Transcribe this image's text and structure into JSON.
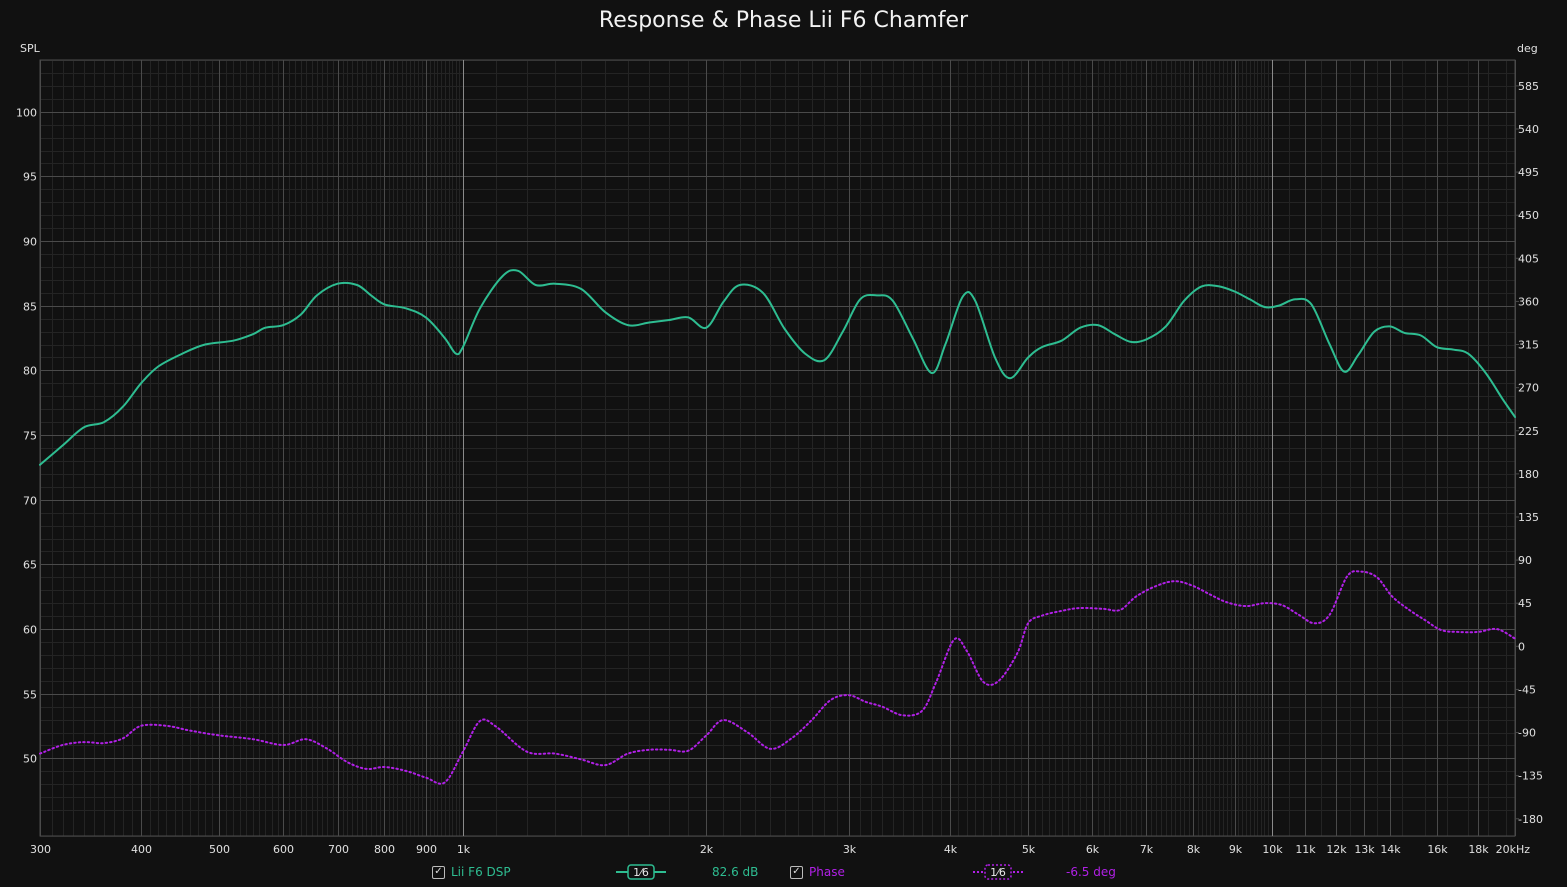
{
  "chart_data": {
    "type": "line",
    "title": "Response & Phase Lii F6 Chamfer",
    "y_left_label": "SPL",
    "y_right_label": "deg",
    "xlim": [
      300,
      20000
    ],
    "x_scale": "log",
    "ylim_left": [
      44,
      104
    ],
    "ylim_right": [
      -198,
      612
    ],
    "x_ticks": [
      {
        "v": 300,
        "t": "300"
      },
      {
        "v": 400,
        "t": "400"
      },
      {
        "v": 500,
        "t": "500"
      },
      {
        "v": 600,
        "t": "600"
      },
      {
        "v": 700,
        "t": "700"
      },
      {
        "v": 800,
        "t": "800"
      },
      {
        "v": 900,
        "t": "900"
      },
      {
        "v": 1000,
        "t": "1k"
      },
      {
        "v": 2000,
        "t": "2k"
      },
      {
        "v": 3000,
        "t": "3k"
      },
      {
        "v": 4000,
        "t": "4k"
      },
      {
        "v": 5000,
        "t": "5k"
      },
      {
        "v": 6000,
        "t": "6k"
      },
      {
        "v": 7000,
        "t": "7k"
      },
      {
        "v": 8000,
        "t": "8k"
      },
      {
        "v": 9000,
        "t": "9k"
      },
      {
        "v": 10000,
        "t": "10k"
      },
      {
        "v": 11000,
        "t": "11k"
      },
      {
        "v": 12000,
        "t": "12k"
      },
      {
        "v": 13000,
        "t": "13k"
      },
      {
        "v": 14000,
        "t": "14k"
      },
      {
        "v": 16000,
        "t": "16k"
      },
      {
        "v": 18000,
        "t": "18k"
      },
      {
        "v": 20000,
        "t": "20kHz"
      }
    ],
    "y_left_ticks": [
      50,
      55,
      60,
      65,
      70,
      75,
      80,
      85,
      90,
      95,
      100
    ],
    "y_right_ticks": [
      -180,
      -135,
      -90,
      -45,
      0,
      45,
      90,
      135,
      180,
      225,
      270,
      315,
      360,
      405,
      450,
      495,
      540,
      585
    ],
    "series": [
      {
        "name": "Lii F6 DSP",
        "axis": "left",
        "color": "#2ebd91",
        "points": [
          [
            300,
            72.7
          ],
          [
            320,
            74.2
          ],
          [
            340,
            75.6
          ],
          [
            360,
            76.0
          ],
          [
            380,
            77.2
          ],
          [
            400,
            79.0
          ],
          [
            420,
            80.3
          ],
          [
            450,
            81.3
          ],
          [
            480,
            82.0
          ],
          [
            520,
            82.3
          ],
          [
            550,
            82.8
          ],
          [
            570,
            83.3
          ],
          [
            600,
            83.5
          ],
          [
            630,
            84.3
          ],
          [
            660,
            85.8
          ],
          [
            700,
            86.7
          ],
          [
            740,
            86.6
          ],
          [
            770,
            85.8
          ],
          [
            800,
            85.1
          ],
          [
            850,
            84.8
          ],
          [
            900,
            84.1
          ],
          [
            950,
            82.5
          ],
          [
            980,
            81.3
          ],
          [
            1000,
            81.8
          ],
          [
            1050,
            84.8
          ],
          [
            1120,
            87.3
          ],
          [
            1170,
            87.7
          ],
          [
            1230,
            86.6
          ],
          [
            1300,
            86.7
          ],
          [
            1400,
            86.3
          ],
          [
            1500,
            84.5
          ],
          [
            1600,
            83.5
          ],
          [
            1700,
            83.7
          ],
          [
            1800,
            83.9
          ],
          [
            1900,
            84.1
          ],
          [
            2000,
            83.3
          ],
          [
            2100,
            85.3
          ],
          [
            2200,
            86.6
          ],
          [
            2350,
            86.0
          ],
          [
            2500,
            83.2
          ],
          [
            2650,
            81.3
          ],
          [
            2800,
            80.8
          ],
          [
            2950,
            83.0
          ],
          [
            3100,
            85.5
          ],
          [
            3250,
            85.8
          ],
          [
            3400,
            85.4
          ],
          [
            3600,
            82.5
          ],
          [
            3800,
            79.8
          ],
          [
            3950,
            82.0
          ],
          [
            4150,
            85.7
          ],
          [
            4300,
            85.4
          ],
          [
            4550,
            81.0
          ],
          [
            4750,
            79.4
          ],
          [
            5000,
            81.0
          ],
          [
            5200,
            81.8
          ],
          [
            5500,
            82.3
          ],
          [
            5800,
            83.3
          ],
          [
            6100,
            83.5
          ],
          [
            6400,
            82.8
          ],
          [
            6700,
            82.2
          ],
          [
            7000,
            82.4
          ],
          [
            7400,
            83.4
          ],
          [
            7800,
            85.4
          ],
          [
            8200,
            86.5
          ],
          [
            8600,
            86.5
          ],
          [
            9000,
            86.1
          ],
          [
            9400,
            85.5
          ],
          [
            9800,
            84.9
          ],
          [
            10200,
            85.0
          ],
          [
            10700,
            85.5
          ],
          [
            11200,
            85.1
          ],
          [
            11800,
            82.0
          ],
          [
            12300,
            79.9
          ],
          [
            12800,
            81.2
          ],
          [
            13400,
            83.0
          ],
          [
            14000,
            83.4
          ],
          [
            14600,
            82.9
          ],
          [
            15300,
            82.7
          ],
          [
            16000,
            81.8
          ],
          [
            16800,
            81.6
          ],
          [
            17500,
            81.3
          ],
          [
            18400,
            79.8
          ],
          [
            19300,
            77.8
          ],
          [
            20000,
            76.4
          ]
        ]
      },
      {
        "name": "Phase",
        "axis": "right",
        "color": "#b020e6",
        "points": [
          [
            300,
            -112
          ],
          [
            320,
            -103
          ],
          [
            340,
            -100
          ],
          [
            360,
            -101
          ],
          [
            380,
            -96
          ],
          [
            400,
            -83
          ],
          [
            430,
            -83
          ],
          [
            460,
            -88
          ],
          [
            500,
            -93
          ],
          [
            550,
            -97
          ],
          [
            600,
            -103
          ],
          [
            640,
            -97
          ],
          [
            680,
            -107
          ],
          [
            720,
            -121
          ],
          [
            760,
            -128
          ],
          [
            800,
            -126
          ],
          [
            850,
            -130
          ],
          [
            900,
            -137
          ],
          [
            950,
            -142
          ],
          [
            1000,
            -110
          ],
          [
            1050,
            -78
          ],
          [
            1100,
            -84
          ],
          [
            1200,
            -110
          ],
          [
            1300,
            -112
          ],
          [
            1400,
            -118
          ],
          [
            1500,
            -124
          ],
          [
            1600,
            -112
          ],
          [
            1700,
            -108
          ],
          [
            1800,
            -108
          ],
          [
            1900,
            -109
          ],
          [
            2000,
            -93
          ],
          [
            2100,
            -77
          ],
          [
            2250,
            -90
          ],
          [
            2400,
            -107
          ],
          [
            2550,
            -96
          ],
          [
            2700,
            -77
          ],
          [
            2850,
            -56
          ],
          [
            3000,
            -51
          ],
          [
            3150,
            -58
          ],
          [
            3300,
            -63
          ],
          [
            3500,
            -72
          ],
          [
            3700,
            -67
          ],
          [
            3850,
            -37
          ],
          [
            4050,
            7
          ],
          [
            4200,
            -5
          ],
          [
            4400,
            -37
          ],
          [
            4600,
            -36
          ],
          [
            4850,
            -7
          ],
          [
            5000,
            24
          ],
          [
            5200,
            32
          ],
          [
            5500,
            37
          ],
          [
            5800,
            40
          ],
          [
            6200,
            39
          ],
          [
            6500,
            38
          ],
          [
            6800,
            52
          ],
          [
            7200,
            63
          ],
          [
            7600,
            68
          ],
          [
            8000,
            63
          ],
          [
            8400,
            54
          ],
          [
            8800,
            46
          ],
          [
            9300,
            42
          ],
          [
            9800,
            45
          ],
          [
            10300,
            43
          ],
          [
            10800,
            33
          ],
          [
            11300,
            24
          ],
          [
            11800,
            33
          ],
          [
            12400,
            73
          ],
          [
            12900,
            78
          ],
          [
            13500,
            72
          ],
          [
            14100,
            52
          ],
          [
            14800,
            38
          ],
          [
            15500,
            27
          ],
          [
            16200,
            17
          ],
          [
            17000,
            15
          ],
          [
            18000,
            15
          ],
          [
            19000,
            18
          ],
          [
            20000,
            8
          ]
        ]
      }
    ],
    "legend": {
      "items": [
        {
          "checked": "✓",
          "label": "Lii F6 DSP",
          "smoothing": "1⁄6",
          "readout": "82.6 dB",
          "color": "#2ebd91"
        },
        {
          "checked": "✓",
          "label": "Phase",
          "smoothing": "1⁄6",
          "readout": "-6.5 deg",
          "color": "#b020e6"
        }
      ]
    }
  },
  "colors": {
    "background": "#111111",
    "grid_major": "#4a4a4a",
    "grid_minor": "#242424",
    "grid_emph": "#8a8a8a",
    "text": "#e0e0e0"
  }
}
